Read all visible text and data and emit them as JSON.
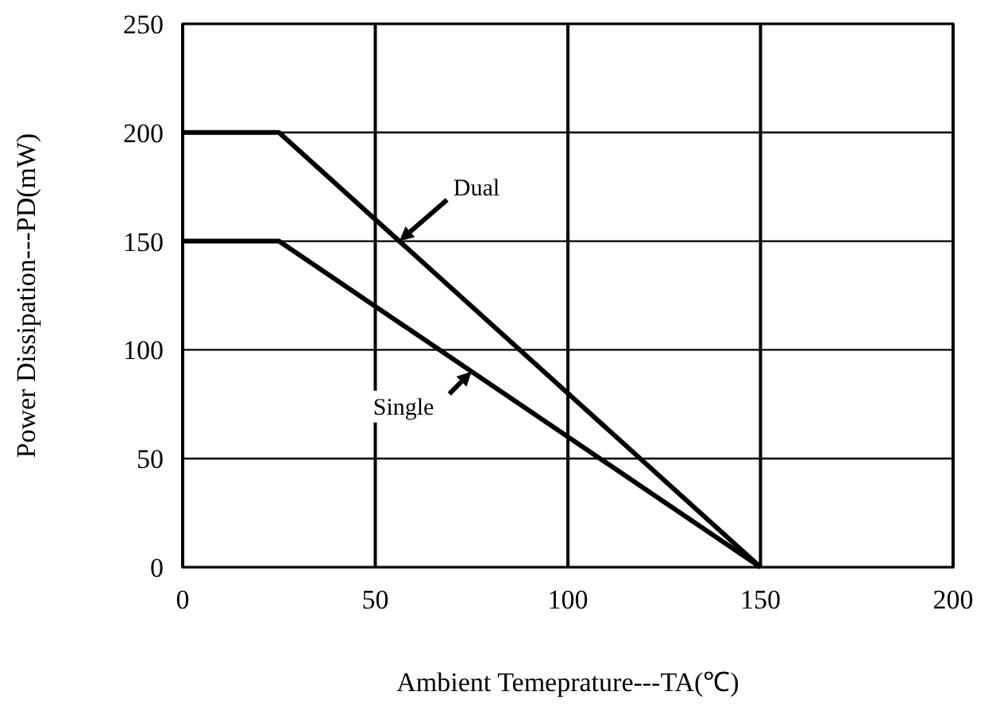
{
  "chart_data": {
    "type": "line",
    "xlabel": "Ambient Temeprature---TA(℃)",
    "ylabel": "Power Dissipation---PD(mW)",
    "xlim": [
      0,
      200
    ],
    "xticks": [
      0,
      50,
      100,
      150,
      200
    ],
    "ylim": [
      0,
      250
    ],
    "yticks": [
      0,
      50,
      100,
      150,
      200,
      250
    ],
    "grid": true,
    "line_style": "solid",
    "marker": "none",
    "series": [
      {
        "name": "Dual",
        "color": "#000000",
        "x": [
          0,
          25,
          150
        ],
        "values": [
          200,
          200,
          0
        ]
      },
      {
        "name": "Single",
        "color": "#000000",
        "x": [
          0,
          25,
          150
        ],
        "values": [
          150,
          150,
          0
        ]
      }
    ]
  }
}
